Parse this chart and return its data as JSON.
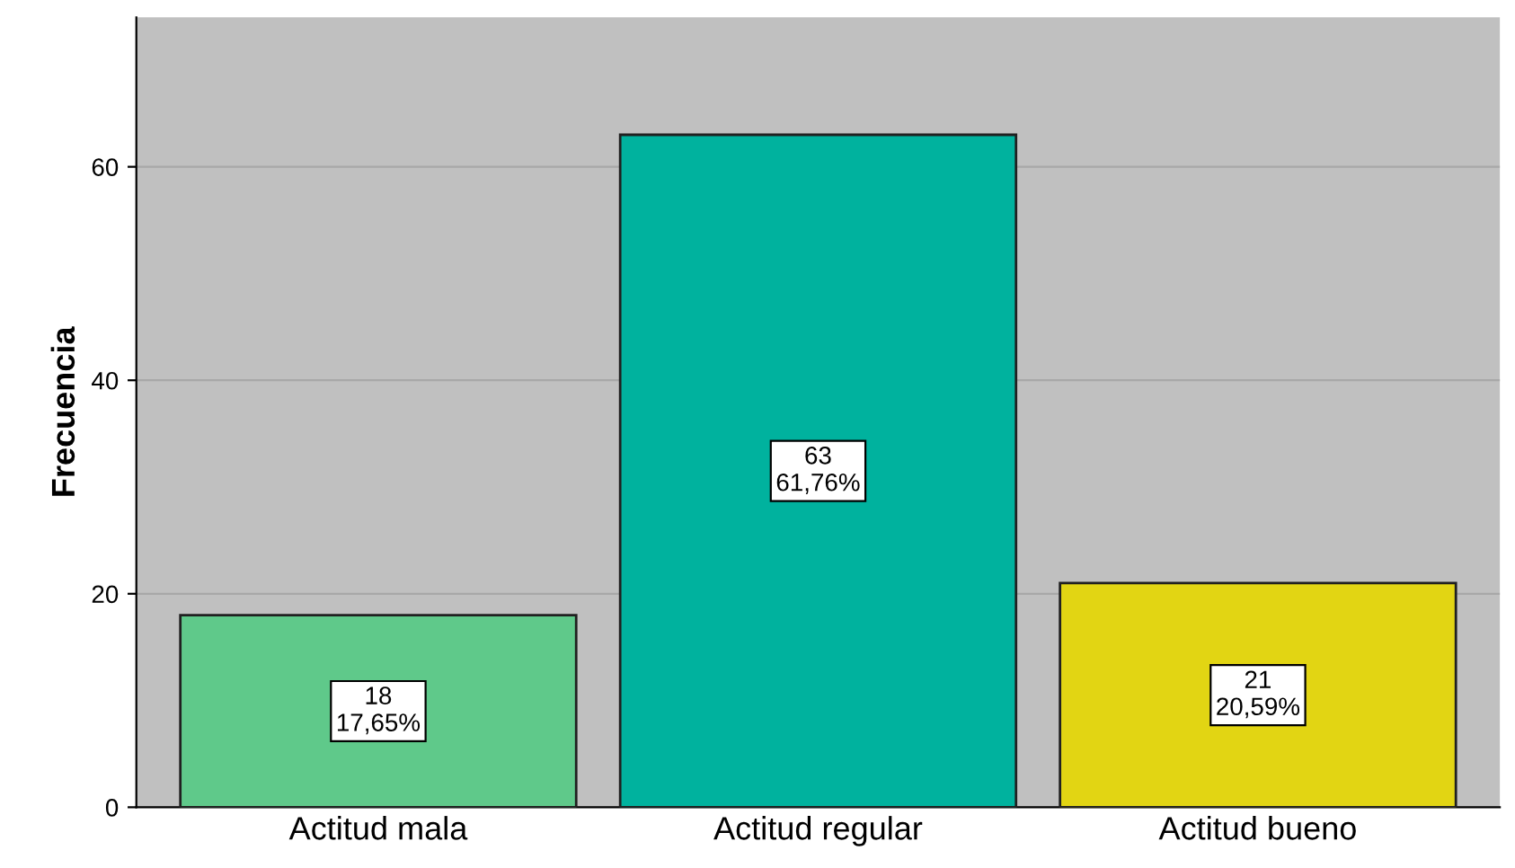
{
  "chart_data": {
    "type": "bar",
    "ylabel": "Frecuencia",
    "categories": [
      "Actitud mala",
      "Actitud regular",
      "Actitud bueno"
    ],
    "values": [
      18,
      63,
      21
    ],
    "colors": [
      "#5fc98a",
      "#00b29e",
      "#e2d513"
    ],
    "value_labels": [
      "18\n17,65%",
      "63\n61,76%",
      "21\n20,59%"
    ],
    "ylim": [
      0,
      74
    ],
    "yticks": [
      0,
      20,
      40,
      60
    ],
    "grid": "y",
    "legend": false
  }
}
